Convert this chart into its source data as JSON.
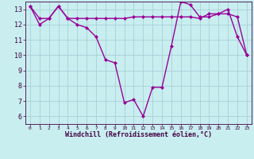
{
  "line1_x": [
    0,
    1,
    2,
    3,
    4,
    5,
    6,
    7,
    8,
    9,
    10,
    11,
    12,
    13,
    14,
    15,
    16,
    17,
    18,
    19,
    20,
    21,
    22,
    23
  ],
  "line1_y": [
    13.2,
    12.4,
    12.4,
    13.2,
    12.4,
    12.4,
    12.4,
    12.4,
    12.4,
    12.4,
    12.4,
    12.5,
    12.5,
    12.5,
    12.5,
    12.5,
    12.5,
    12.5,
    12.4,
    12.7,
    12.7,
    12.7,
    12.5,
    10.0
  ],
  "line2_x": [
    0,
    1,
    2,
    3,
    4,
    5,
    6,
    7,
    8,
    9,
    10,
    11,
    12,
    13,
    14,
    15,
    16,
    17,
    18,
    19,
    20,
    21,
    22,
    23
  ],
  "line2_y": [
    13.2,
    12.0,
    12.4,
    13.2,
    12.4,
    12.0,
    11.8,
    11.2,
    9.7,
    9.5,
    6.9,
    7.1,
    6.0,
    7.9,
    7.9,
    10.6,
    13.5,
    13.3,
    12.5,
    12.5,
    12.7,
    13.0,
    11.2,
    10.0
  ],
  "color": "#990099",
  "bg_color": "#c8eef0",
  "grid_color": "#aad0d8",
  "ylim": [
    5.5,
    13.5
  ],
  "xlim": [
    -0.5,
    23.5
  ],
  "yticks": [
    6,
    7,
    8,
    9,
    10,
    11,
    12,
    13
  ],
  "xticks": [
    0,
    1,
    2,
    3,
    4,
    5,
    6,
    7,
    8,
    9,
    10,
    11,
    12,
    13,
    14,
    15,
    16,
    17,
    18,
    19,
    20,
    21,
    22,
    23
  ],
  "xlabel": "Windchill (Refroidissement éolien,°C)",
  "marker": "D",
  "markersize": 2,
  "linewidth": 1.0,
  "xtick_fontsize": 4.5,
  "ytick_fontsize": 6.0,
  "xlabel_fontsize": 6.0
}
